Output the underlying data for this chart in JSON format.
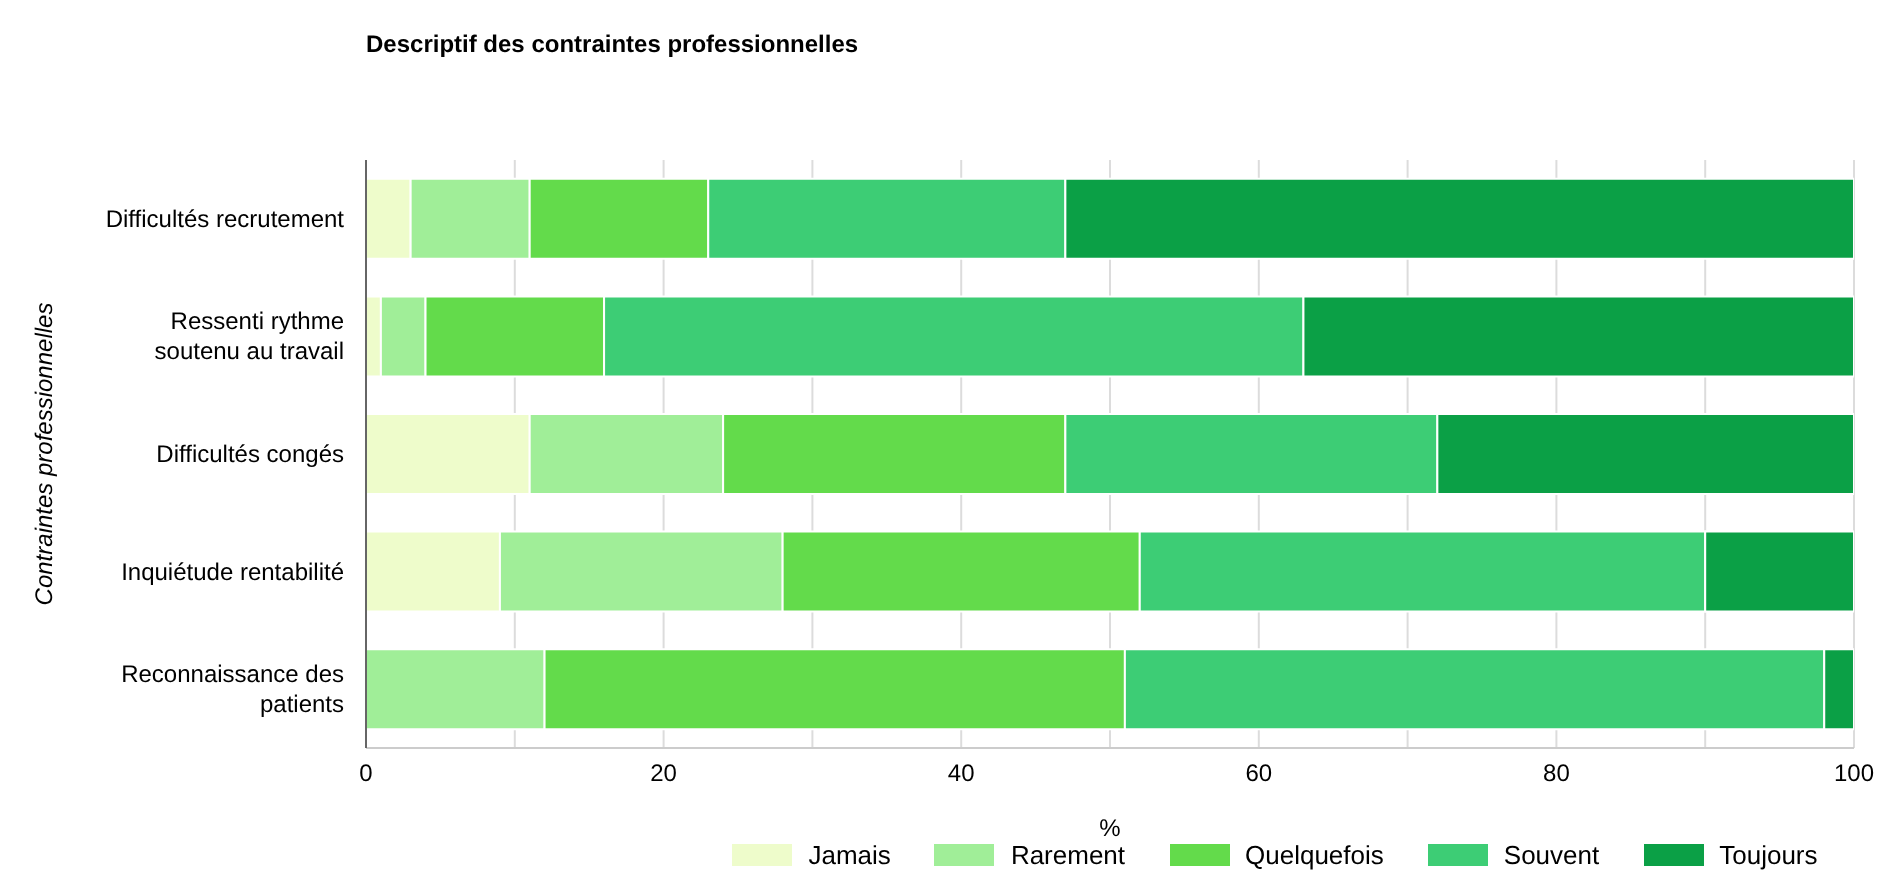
{
  "chart_data": {
    "type": "bar",
    "orientation": "horizontal",
    "stacked": true,
    "title": "Descriptif des contraintes professionnelles",
    "xlabel": "%",
    "ylabel": "Contraintes professionnelles",
    "categories": [
      "Difficultés recrutement",
      "Ressenti rythme soutenu au travail",
      "Difficultés congés",
      "Inquiétude rentabilité",
      "Reconnaissance des patients"
    ],
    "series": [
      {
        "name": "Jamais",
        "color": "#eefccb",
        "values": [
          3,
          1,
          11,
          9,
          0
        ]
      },
      {
        "name": "Rarement",
        "color": "#a0ee98",
        "values": [
          8,
          3,
          13,
          19,
          12
        ]
      },
      {
        "name": "Quelquefois",
        "color": "#63db4b",
        "values": [
          12,
          12,
          23,
          24,
          39
        ]
      },
      {
        "name": "Souvent",
        "color": "#3dcd75",
        "values": [
          24,
          47,
          25,
          38,
          47
        ]
      },
      {
        "name": "Toujours",
        "color": "#0ba046",
        "values": [
          53,
          37,
          28,
          10,
          2
        ]
      }
    ],
    "xlim": [
      0,
      100
    ],
    "xticks": [
      0,
      {
        "value": 10,
        "label": null
      },
      20,
      {
        "value": 30,
        "label": null
      },
      40,
      {
        "value": 50,
        "label": null
      },
      60,
      {
        "value": 70,
        "label": null
      },
      80,
      {
        "value": 90,
        "label": null
      },
      100
    ],
    "grid": "x",
    "legend": "bottom"
  }
}
